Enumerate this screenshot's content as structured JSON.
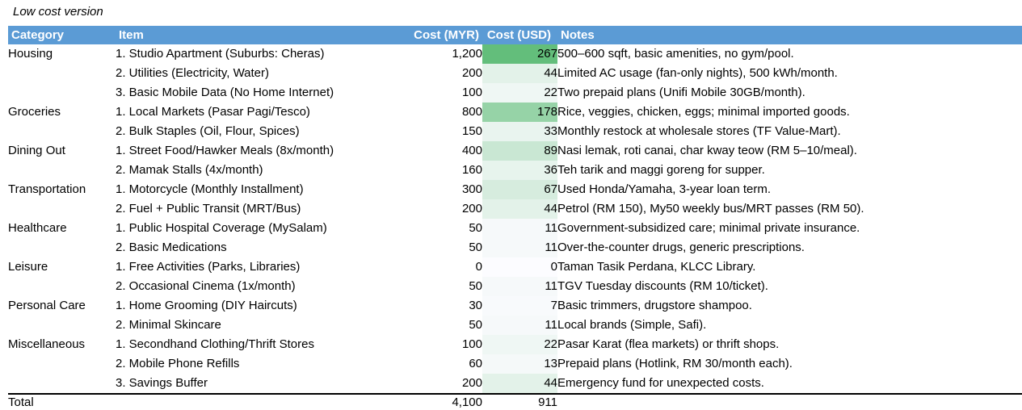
{
  "title": "Low cost version",
  "colors": {
    "header_bg": "#5B9BD5",
    "header_text": "#FFFFFF",
    "usd_scale_min": "#FCFCFF",
    "usd_scale_max": "#63BE7B"
  },
  "columns": {
    "category": "Category",
    "item": "Item",
    "myr": "Cost (MYR)",
    "usd": "Cost (USD)",
    "notes": "Notes"
  },
  "rows": [
    {
      "category": "Housing",
      "item": "1. Studio Apartment (Suburbs: Cheras)",
      "myr": "1,200",
      "usd": "267",
      "usd_bg": "#63BE7B",
      "notes": "500–600 sqft, basic amenities, no gym/pool."
    },
    {
      "category": "",
      "item": "2. Utilities (Electricity, Water)",
      "myr": "200",
      "usd": "44",
      "usd_bg": "#E3F2E9",
      "notes": "Limited AC usage (fan-only nights), 500 kWh/month."
    },
    {
      "category": "",
      "item": "3. Basic Mobile Data (No Home Internet)",
      "myr": "100",
      "usd": "22",
      "usd_bg": "#EFF7F4",
      "notes": "Two prepaid plans (Unifi Mobile 30GB/month)."
    },
    {
      "category": "Groceries",
      "item": "1. Local Markets (Pasar Pagi/Tesco)",
      "myr": "800",
      "usd": "178",
      "usd_bg": "#96D3A7",
      "notes": "Rice, veggies, chicken, eggs; minimal imported goods."
    },
    {
      "category": "",
      "item": "2. Bulk Staples (Oil, Flour, Spices)",
      "myr": "150",
      "usd": "33",
      "usd_bg": "#E9F4EF",
      "notes": "Monthly restock at wholesale stores (TF Value-Mart)."
    },
    {
      "category": "Dining Out",
      "item": "1. Street Food/Hawker Meals (8x/month)",
      "myr": "400",
      "usd": "89",
      "usd_bg": "#C9E7D3",
      "notes": "Nasi lemak, roti canai, char kway teow (RM 5–10/meal)."
    },
    {
      "category": "",
      "item": "2. Mamak Stalls (4x/month)",
      "myr": "160",
      "usd": "36",
      "usd_bg": "#E7F4ED",
      "notes": "Teh tarik and maggi goreng for supper."
    },
    {
      "category": "Transportation",
      "item": "1. Motorcycle (Monthly Installment)",
      "myr": "300",
      "usd": "67",
      "usd_bg": "#D6ECDE",
      "notes": "Used Honda/Yamaha, 3-year loan term."
    },
    {
      "category": "",
      "item": "2. Fuel + Public Transit (MRT/Bus)",
      "myr": "200",
      "usd": "44",
      "usd_bg": "#E3F2E9",
      "notes": "Petrol (RM 150), My50 weekly bus/MRT passes (RM 50)."
    },
    {
      "category": "Healthcare",
      "item": "1. Public Hospital Coverage (MySalam)",
      "myr": "50",
      "usd": "11",
      "usd_bg": "#F6F9FA",
      "notes": "Government-subsidized care; minimal private insurance."
    },
    {
      "category": "",
      "item": "2. Basic Medications",
      "myr": "50",
      "usd": "11",
      "usd_bg": "#F6F9FA",
      "notes": "Over-the-counter drugs, generic prescriptions."
    },
    {
      "category": "Leisure",
      "item": "1. Free Activities (Parks, Libraries)",
      "myr": "0",
      "usd": "0",
      "usd_bg": "#FCFCFF",
      "notes": "Taman Tasik Perdana, KLCC Library."
    },
    {
      "category": "",
      "item": "2. Occasional Cinema (1x/month)",
      "myr": "50",
      "usd": "11",
      "usd_bg": "#F6F9FA",
      "notes": "TGV Tuesday discounts (RM 10/ticket)."
    },
    {
      "category": "Personal Care",
      "item": "1. Home Grooming (DIY Haircuts)",
      "myr": "30",
      "usd": "7",
      "usd_bg": "#F8FAFC",
      "notes": "Basic trimmers, drugstore shampoo."
    },
    {
      "category": "",
      "item": "2. Minimal Skincare",
      "myr": "50",
      "usd": "11",
      "usd_bg": "#F6F9FA",
      "notes": "Local brands (Simple, Safi)."
    },
    {
      "category": "Miscellaneous",
      "item": "1. Secondhand Clothing/Thrift Stores",
      "myr": "100",
      "usd": "22",
      "usd_bg": "#EFF7F4",
      "notes": "Pasar Karat (flea markets) or thrift shops."
    },
    {
      "category": "",
      "item": "2. Mobile Phone Refills",
      "myr": "60",
      "usd": "13",
      "usd_bg": "#F5F9F9",
      "notes": "Prepaid plans (Hotlink, RM 30/month each)."
    },
    {
      "category": "",
      "item": "3. Savings Buffer",
      "myr": "200",
      "usd": "44",
      "usd_bg": "#E3F2E9",
      "notes": "Emergency fund for unexpected costs."
    }
  ],
  "total": {
    "label": "Total",
    "myr": "4,100",
    "usd": "911",
    "notes": ""
  }
}
